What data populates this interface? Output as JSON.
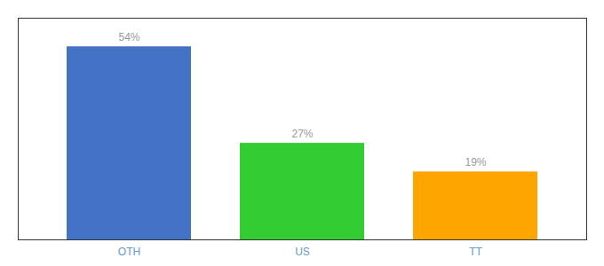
{
  "chart_data": {
    "type": "bar",
    "categories": [
      "OTH",
      "US",
      "TT"
    ],
    "values": [
      54,
      27,
      19
    ],
    "value_labels": [
      "54%",
      "27%",
      "19%"
    ],
    "colors": [
      "#4472C4",
      "#33CC33",
      "#FFA500"
    ],
    "ylim": [
      0,
      62
    ],
    "data_labels": true,
    "tick_labels": "x",
    "grid": false
  }
}
